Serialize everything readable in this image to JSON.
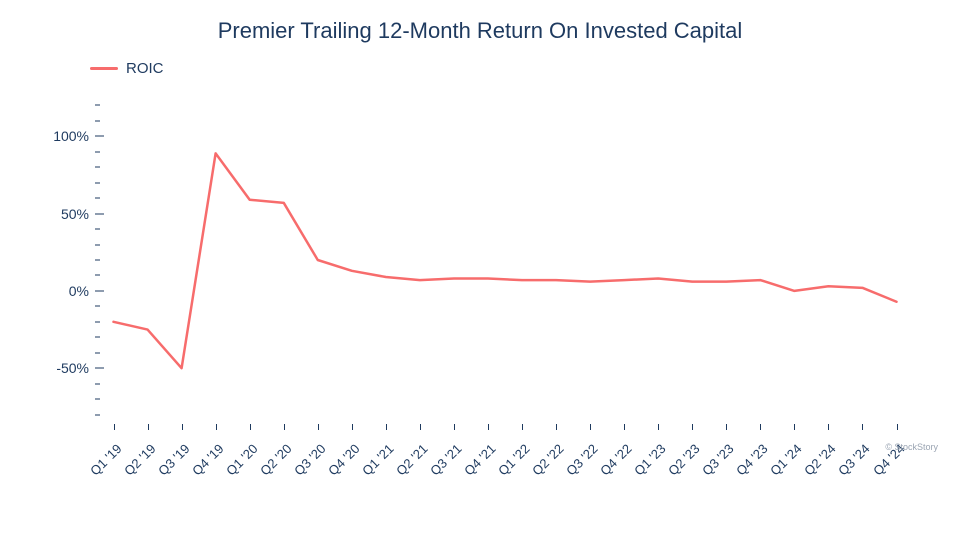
{
  "title": "Premier Trailing 12-Month Return On Invested Capital",
  "legend": {
    "label": "ROIC",
    "color": "#f76c6c"
  },
  "attribution": "© StockStory",
  "chart": {
    "type": "line",
    "background_color": "#ffffff",
    "title_color": "#1e3a5f",
    "axis_color": "#1e3a5f",
    "line_color": "#f76c6c",
    "line_width": 2.5,
    "ylim": [
      -90,
      130
    ],
    "y_major_ticks": [
      -50,
      0,
      50,
      100
    ],
    "y_minor_step": 10,
    "y_tick_labels": [
      "-50%",
      "0%",
      "50%",
      "100%"
    ],
    "x_labels": [
      "Q1 '19",
      "Q2 '19",
      "Q3 '19",
      "Q4 '19",
      "Q1 '20",
      "Q2 '20",
      "Q3 '20",
      "Q4 '20",
      "Q1 '21",
      "Q2 '21",
      "Q3 '21",
      "Q4 '21",
      "Q1 '22",
      "Q2 '22",
      "Q3 '22",
      "Q4 '22",
      "Q1 '23",
      "Q2 '23",
      "Q3 '23",
      "Q4 '23",
      "Q1 '24",
      "Q2 '24",
      "Q3 '24",
      "Q4 '24"
    ],
    "values": [
      -20,
      -25,
      -50,
      89,
      59,
      57,
      20,
      13,
      9,
      7,
      8,
      8,
      7,
      7,
      6,
      7,
      8,
      6,
      6,
      7,
      0,
      3,
      2,
      -7
    ],
    "title_fontsize": 22,
    "label_fontsize": 14,
    "xlabel_fontsize": 13,
    "legend_fontsize": 15
  }
}
